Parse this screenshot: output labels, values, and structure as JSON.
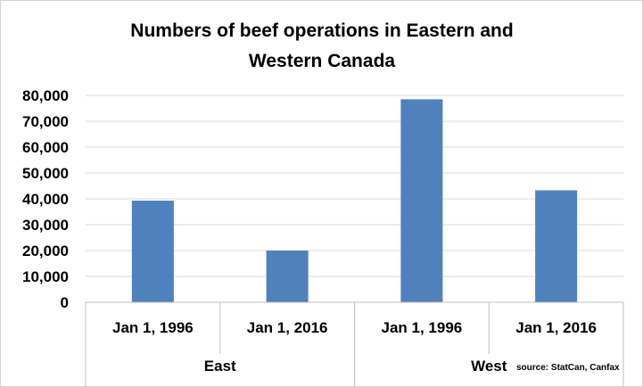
{
  "chart_data": {
    "type": "bar",
    "title_lines": [
      "Numbers of beef operations in Eastern and",
      "Western Canada"
    ],
    "groups": [
      {
        "name": "East",
        "categories": [
          "Jan 1, 1996",
          "Jan 1, 2016"
        ],
        "values": [
          39300,
          20000
        ]
      },
      {
        "name": "West",
        "categories": [
          "Jan 1, 1996",
          "Jan 1, 2016"
        ],
        "values": [
          78500,
          43300
        ]
      }
    ],
    "ylim": [
      0,
      80000
    ],
    "yticks": [
      0,
      10000,
      20000,
      30000,
      40000,
      50000,
      60000,
      70000,
      80000
    ],
    "ytick_labels": [
      "0",
      "10,000",
      "20,000",
      "30,000",
      "40,000",
      "50,000",
      "60,000",
      "70,000",
      "80,000"
    ],
    "grid": true,
    "legend": "none",
    "source": "source: StatCan, Canfax",
    "colors": {
      "bar": "#4f81bd",
      "grid": "#d9d9d9",
      "axis": "#bfbfbf"
    }
  }
}
